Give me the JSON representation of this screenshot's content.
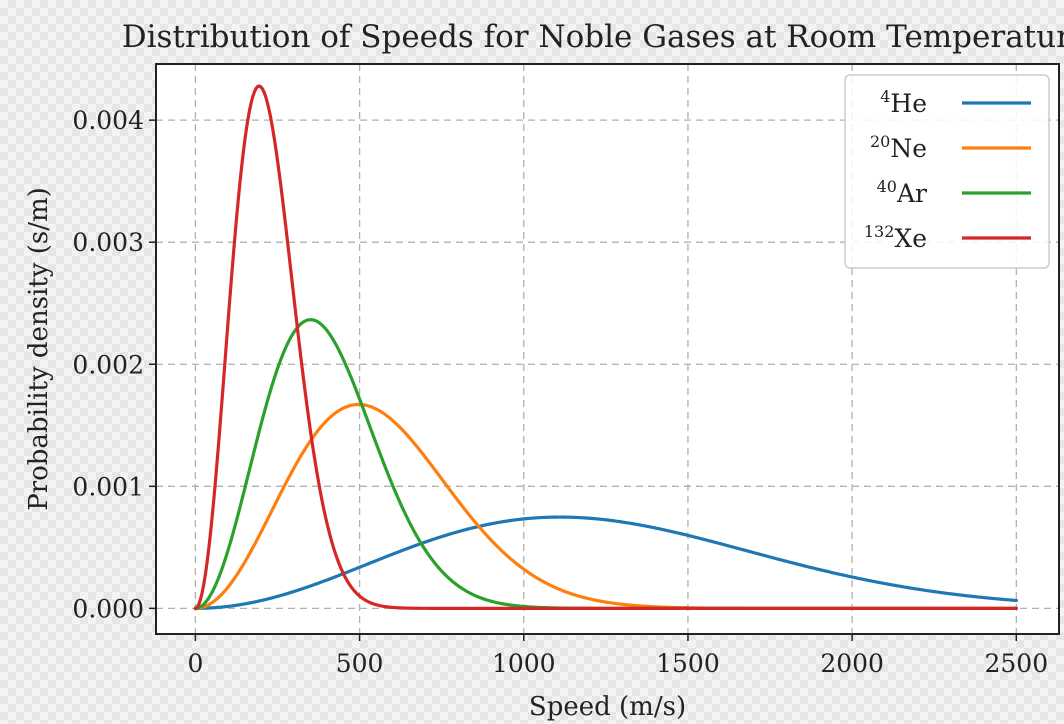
{
  "chart_data": {
    "type": "line",
    "title": "Distribution of Speeds for Noble Gases at Room Temperature",
    "xlabel": "Speed (m/s)",
    "ylabel": "Probability density (s/m)",
    "xlim": [
      -120,
      2630
    ],
    "ylim": [
      -0.00021,
      0.00446
    ],
    "xticks": [
      0,
      500,
      1000,
      1500,
      2000,
      2500
    ],
    "xtick_labels": [
      "0",
      "500",
      "1000",
      "1500",
      "2000",
      "2500"
    ],
    "yticks": [
      0.0,
      0.001,
      0.002,
      0.003,
      0.004
    ],
    "ytick_labels": [
      "0.000",
      "0.001",
      "0.002",
      "0.003",
      "0.004"
    ],
    "grid": true,
    "legend_position": "top-right",
    "x_range": [
      0,
      2500
    ],
    "series": [
      {
        "name": "He",
        "mass_number": "4",
        "color": "#1f77b4",
        "peak_x": 1110,
        "peak_y": 0.000745
      },
      {
        "name": "Ne",
        "mass_number": "20",
        "color": "#ff7f0e",
        "peak_x": 497,
        "peak_y": 0.00167
      },
      {
        "name": "Ar",
        "mass_number": "40",
        "color": "#2ca02c",
        "peak_x": 351,
        "peak_y": 0.00236
      },
      {
        "name": "Xe",
        "mass_number": "132",
        "color": "#d62728",
        "peak_x": 194,
        "peak_y": 0.00429
      }
    ]
  }
}
